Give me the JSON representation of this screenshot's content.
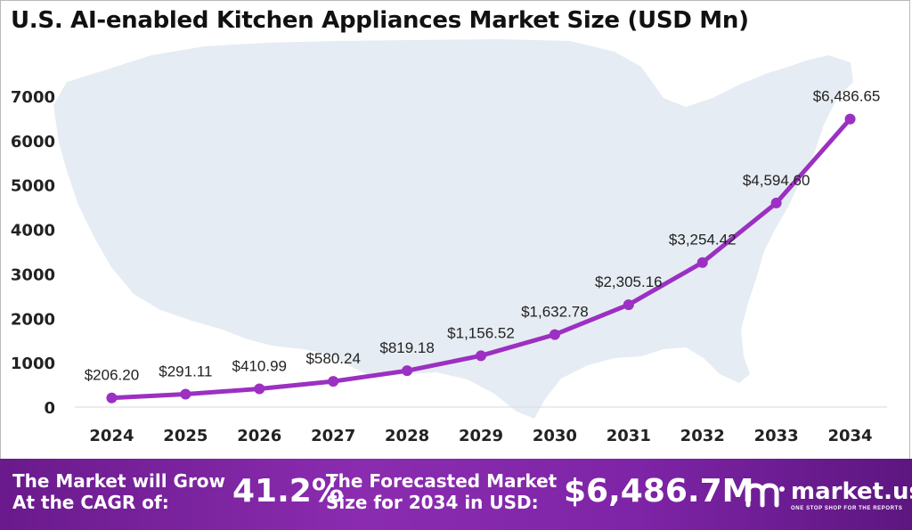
{
  "chart_data": {
    "type": "line",
    "title": "U.S. AI-enabled Kitchen Appliances Market Size (USD Mn)",
    "categories": [
      "2024",
      "2025",
      "2026",
      "2027",
      "2028",
      "2029",
      "2030",
      "2031",
      "2032",
      "2033",
      "2034"
    ],
    "values": [
      206.2,
      291.11,
      410.99,
      580.24,
      819.18,
      1156.52,
      1632.78,
      2305.16,
      3254.42,
      4594.6,
      6486.65
    ],
    "data_labels": [
      "$206.20",
      "$291.11",
      "$410.99",
      "$580.24",
      "$819.18",
      "$1,156.52",
      "$1,632.78",
      "$2,305.16",
      "$3,254.42",
      "$4,594.60",
      "$6,486.65"
    ],
    "ylim": [
      0,
      7000
    ],
    "yticks": [
      0,
      1000,
      2000,
      3000,
      4000,
      5000,
      6000,
      7000
    ],
    "grid": false,
    "line_color": "#9b30c2"
  },
  "footer": {
    "cagr_label": [
      "The Market will Grow",
      "At the CAGR of:"
    ],
    "cagr_value": "41.2%",
    "forecast_label": [
      "The Forecasted Market",
      "Size for 2034 in USD:"
    ],
    "forecast_value": "$6,486.7M",
    "brand": "market.us",
    "tagline": "ONE STOP SHOP FOR THE REPORTS",
    "logo_icon": "market-us-logo-icon"
  },
  "colors": {
    "footer_bg": "#7e24a7",
    "map_fill": "#e6ecf3"
  }
}
